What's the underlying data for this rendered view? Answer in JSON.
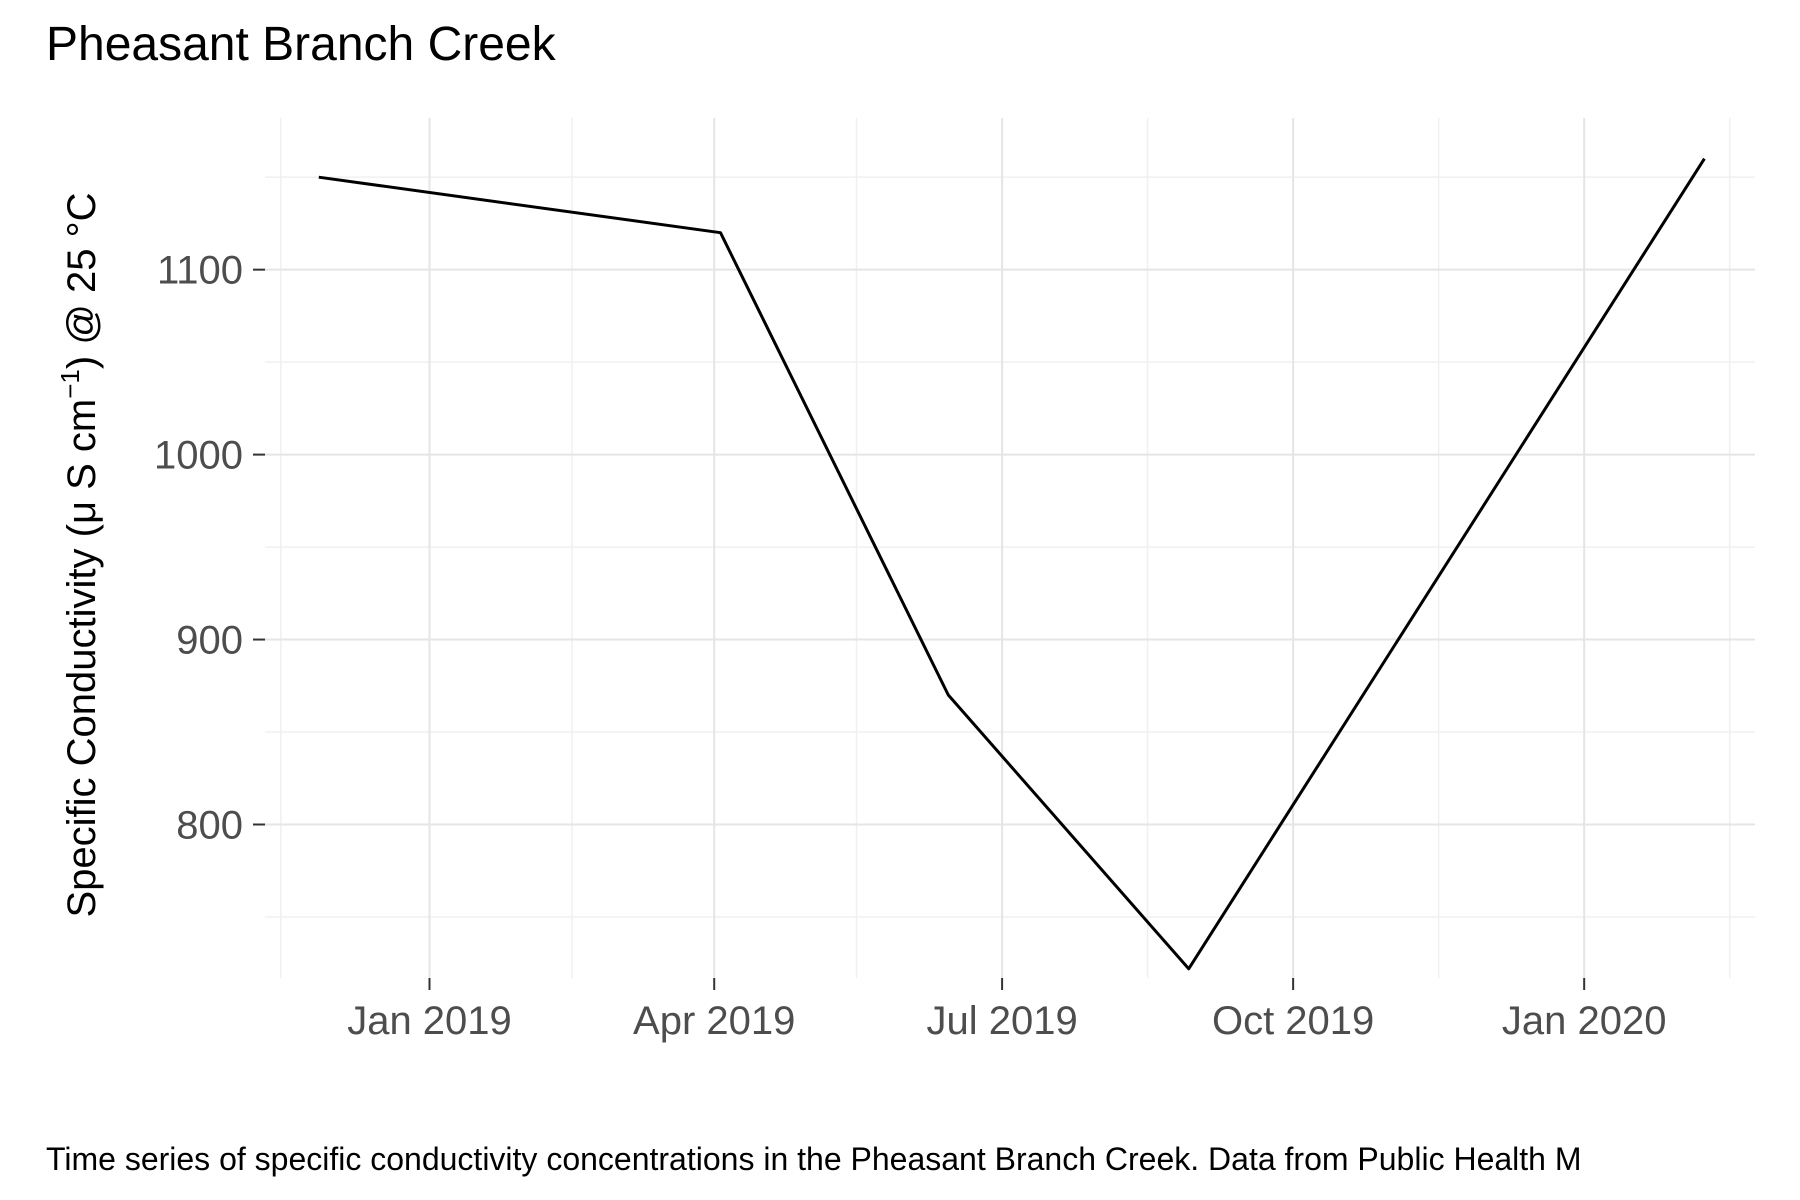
{
  "chart_data": {
    "type": "line",
    "title": "Pheasant Branch Creek",
    "caption": "Time series of specific conductivity concentrations in the Pheasant Branch Creek. Data from Public Health M",
    "ylabel_parts": {
      "before": "Specific Conductivity (",
      "mu": "μ",
      "s_cm": " S cm",
      "sup": "−1",
      "after": ") @ 25 °C"
    },
    "xlabel": "",
    "x_ticks": [
      {
        "date": "2019-01-01",
        "label": "Jan 2019"
      },
      {
        "date": "2019-04-01",
        "label": "Apr 2019"
      },
      {
        "date": "2019-07-01",
        "label": "Jul 2019"
      },
      {
        "date": "2019-10-01",
        "label": "Oct 2019"
      },
      {
        "date": "2020-01-01",
        "label": "Jan 2020"
      }
    ],
    "x_minor_ticks": [
      "2018-11-15",
      "2019-02-15",
      "2019-05-16",
      "2019-08-16",
      "2019-11-16",
      "2020-02-16"
    ],
    "xlim": [
      "2018-11-10",
      "2020-02-24"
    ],
    "y_ticks": [
      800,
      900,
      1000,
      1100
    ],
    "y_minor_ticks": [
      750,
      850,
      950,
      1050,
      1150
    ],
    "ylim": [
      717,
      1182
    ],
    "grid": true,
    "x": [
      "2018-11-27",
      "2019-04-03",
      "2019-06-14",
      "2019-08-29",
      "2020-02-08"
    ],
    "values": [
      1150,
      1120,
      870,
      722,
      1160
    ]
  }
}
